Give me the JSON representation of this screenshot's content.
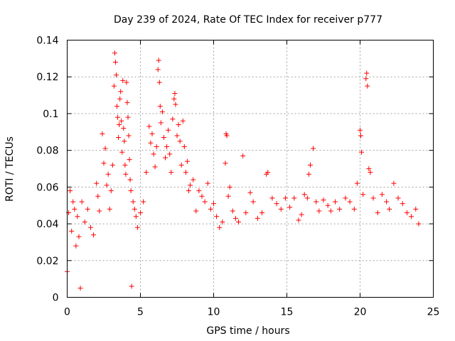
{
  "chart_data": {
    "type": "scatter",
    "title": "Day 239 of 2024, Rate Of TEC Index for receiver p777",
    "xlabel": "GPS time / hours",
    "ylabel": "ROTI / TECUs",
    "xlim": [
      0,
      25
    ],
    "ylim": [
      0,
      0.14
    ],
    "xticks": [
      "0",
      "5",
      "10",
      "15",
      "20",
      "25"
    ],
    "yticks": [
      "0",
      "0.02",
      "0.04",
      "0.06",
      "0.08",
      "0.1",
      "0.12",
      "0.14"
    ],
    "grid": true,
    "marker": "+",
    "color": "#ff0000",
    "points": [
      [
        0.0,
        0.014
      ],
      [
        0.1,
        0.046
      ],
      [
        0.2,
        0.058
      ],
      [
        0.3,
        0.036
      ],
      [
        0.4,
        0.052
      ],
      [
        0.5,
        0.048
      ],
      [
        0.6,
        0.028
      ],
      [
        0.7,
        0.044
      ],
      [
        0.8,
        0.033
      ],
      [
        0.9,
        0.005
      ],
      [
        1.0,
        0.052
      ],
      [
        1.2,
        0.041
      ],
      [
        1.4,
        0.048
      ],
      [
        1.6,
        0.038
      ],
      [
        1.8,
        0.034
      ],
      [
        2.0,
        0.062
      ],
      [
        2.1,
        0.055
      ],
      [
        2.2,
        0.047
      ],
      [
        2.4,
        0.089
      ],
      [
        2.5,
        0.073
      ],
      [
        2.6,
        0.081
      ],
      [
        2.7,
        0.061
      ],
      [
        2.8,
        0.067
      ],
      [
        2.9,
        0.048
      ],
      [
        3.0,
        0.058
      ],
      [
        3.1,
        0.072
      ],
      [
        3.2,
        0.115
      ],
      [
        3.25,
        0.133
      ],
      [
        3.3,
        0.128
      ],
      [
        3.35,
        0.121
      ],
      [
        3.4,
        0.104
      ],
      [
        3.45,
        0.098
      ],
      [
        3.5,
        0.087
      ],
      [
        3.55,
        0.094
      ],
      [
        3.6,
        0.108
      ],
      [
        3.65,
        0.112
      ],
      [
        3.7,
        0.096
      ],
      [
        3.75,
        0.079
      ],
      [
        3.8,
        0.118
      ],
      [
        3.85,
        0.092
      ],
      [
        3.9,
        0.085
      ],
      [
        3.95,
        0.072
      ],
      [
        4.0,
        0.067
      ],
      [
        4.05,
        0.117
      ],
      [
        4.1,
        0.106
      ],
      [
        4.15,
        0.098
      ],
      [
        4.2,
        0.088
      ],
      [
        4.25,
        0.075
      ],
      [
        4.3,
        0.064
      ],
      [
        4.35,
        0.058
      ],
      [
        4.4,
        0.006
      ],
      [
        4.5,
        0.052
      ],
      [
        4.6,
        0.048
      ],
      [
        4.7,
        0.044
      ],
      [
        4.8,
        0.038
      ],
      [
        5.0,
        0.046
      ],
      [
        5.2,
        0.052
      ],
      [
        5.4,
        0.068
      ],
      [
        5.6,
        0.093
      ],
      [
        5.7,
        0.084
      ],
      [
        5.8,
        0.089
      ],
      [
        5.9,
        0.078
      ],
      [
        6.0,
        0.071
      ],
      [
        6.1,
        0.082
      ],
      [
        6.2,
        0.124
      ],
      [
        6.25,
        0.129
      ],
      [
        6.3,
        0.117
      ],
      [
        6.35,
        0.104
      ],
      [
        6.4,
        0.095
      ],
      [
        6.5,
        0.101
      ],
      [
        6.6,
        0.087
      ],
      [
        6.7,
        0.076
      ],
      [
        6.8,
        0.082
      ],
      [
        6.9,
        0.091
      ],
      [
        7.0,
        0.078
      ],
      [
        7.1,
        0.068
      ],
      [
        7.2,
        0.097
      ],
      [
        7.3,
        0.108
      ],
      [
        7.35,
        0.111
      ],
      [
        7.4,
        0.105
      ],
      [
        7.5,
        0.088
      ],
      [
        7.6,
        0.094
      ],
      [
        7.7,
        0.085
      ],
      [
        7.8,
        0.072
      ],
      [
        7.9,
        0.096
      ],
      [
        8.0,
        0.082
      ],
      [
        8.1,
        0.068
      ],
      [
        8.2,
        0.074
      ],
      [
        8.3,
        0.058
      ],
      [
        8.4,
        0.061
      ],
      [
        8.6,
        0.064
      ],
      [
        8.8,
        0.047
      ],
      [
        9.0,
        0.058
      ],
      [
        9.2,
        0.055
      ],
      [
        9.4,
        0.052
      ],
      [
        9.6,
        0.062
      ],
      [
        9.8,
        0.048
      ],
      [
        10.0,
        0.051
      ],
      [
        10.2,
        0.044
      ],
      [
        10.4,
        0.038
      ],
      [
        10.6,
        0.041
      ],
      [
        10.8,
        0.073
      ],
      [
        10.85,
        0.089
      ],
      [
        10.9,
        0.088
      ],
      [
        11.0,
        0.055
      ],
      [
        11.1,
        0.06
      ],
      [
        11.3,
        0.047
      ],
      [
        11.5,
        0.043
      ],
      [
        11.7,
        0.041
      ],
      [
        12.0,
        0.077
      ],
      [
        12.2,
        0.046
      ],
      [
        12.5,
        0.057
      ],
      [
        12.7,
        0.052
      ],
      [
        13.0,
        0.043
      ],
      [
        13.3,
        0.046
      ],
      [
        13.6,
        0.067
      ],
      [
        13.7,
        0.068
      ],
      [
        14.0,
        0.054
      ],
      [
        14.3,
        0.051
      ],
      [
        14.6,
        0.048
      ],
      [
        14.9,
        0.054
      ],
      [
        15.2,
        0.049
      ],
      [
        15.5,
        0.054
      ],
      [
        15.8,
        0.042
      ],
      [
        16.0,
        0.045
      ],
      [
        16.2,
        0.056
      ],
      [
        16.4,
        0.054
      ],
      [
        16.5,
        0.067
      ],
      [
        16.6,
        0.072
      ],
      [
        16.8,
        0.081
      ],
      [
        17.0,
        0.052
      ],
      [
        17.2,
        0.047
      ],
      [
        17.5,
        0.053
      ],
      [
        17.8,
        0.05
      ],
      [
        18.0,
        0.047
      ],
      [
        18.3,
        0.052
      ],
      [
        18.6,
        0.048
      ],
      [
        19.0,
        0.054
      ],
      [
        19.3,
        0.052
      ],
      [
        19.6,
        0.048
      ],
      [
        19.8,
        0.062
      ],
      [
        20.0,
        0.091
      ],
      [
        20.05,
        0.088
      ],
      [
        20.1,
        0.079
      ],
      [
        20.2,
        0.056
      ],
      [
        20.4,
        0.119
      ],
      [
        20.45,
        0.122
      ],
      [
        20.5,
        0.115
      ],
      [
        20.6,
        0.07
      ],
      [
        20.7,
        0.068
      ],
      [
        20.9,
        0.054
      ],
      [
        21.2,
        0.046
      ],
      [
        21.5,
        0.056
      ],
      [
        21.8,
        0.052
      ],
      [
        22.0,
        0.048
      ],
      [
        22.3,
        0.062
      ],
      [
        22.6,
        0.054
      ],
      [
        22.9,
        0.051
      ],
      [
        23.2,
        0.046
      ],
      [
        23.5,
        0.044
      ],
      [
        23.8,
        0.048
      ],
      [
        24.0,
        0.04
      ]
    ]
  }
}
